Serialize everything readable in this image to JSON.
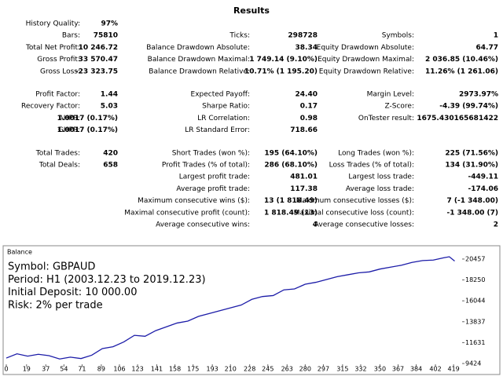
{
  "report": {
    "title": "Results",
    "groups": [
      [
        [
          {
            "label": "History Quality:",
            "value": "97%"
          },
          null,
          null
        ],
        [
          {
            "label": "Bars:",
            "value": "75810"
          },
          {
            "label": "Ticks:",
            "value": "298728"
          },
          {
            "label": "Symbols:",
            "value": "1"
          }
        ],
        [
          {
            "label": "Total Net Profit:",
            "value": "10 246.72"
          },
          {
            "label": "Balance Drawdown Absolute:",
            "value": "38.34"
          },
          {
            "label": "Equity Drawdown Absolute:",
            "value": "64.77"
          }
        ],
        [
          {
            "label": "Gross Profit:",
            "value": "33 570.47"
          },
          {
            "label": "Balance Drawdown Maximal:",
            "value": "1 749.14 (9.10%)"
          },
          {
            "label": "Equity Drawdown Maximal:",
            "value": "2 036.85 (10.46%)"
          }
        ],
        [
          {
            "label": "Gross Loss:",
            "value": "-23 323.75"
          },
          {
            "label": "Balance Drawdown Relative:",
            "value": "10.71% (1 195.20)"
          },
          {
            "label": "Equity Drawdown Relative:",
            "value": "11.26% (1 261.06)"
          }
        ]
      ],
      [
        [
          {
            "label": "Profit Factor:",
            "value": "1.44"
          },
          {
            "label": "Expected Payoff:",
            "value": "24.40"
          },
          {
            "label": "Margin Level:",
            "value": "2973.97%"
          }
        ],
        [
          {
            "label": "Recovery Factor:",
            "value": "5.03"
          },
          {
            "label": "Sharpe Ratio:",
            "value": "0.17"
          },
          {
            "label": "Z-Score:",
            "value": "-4.39 (99.74%)"
          }
        ],
        [
          {
            "label": "AHPR:",
            "value": "1.0017 (0.17%)"
          },
          {
            "label": "LR Correlation:",
            "value": "0.98"
          },
          {
            "label": "OnTester result:",
            "value": "1675.430165681422"
          }
        ],
        [
          {
            "label": "GHPR:",
            "value": "1.0017 (0.17%)"
          },
          {
            "label": "LR Standard Error:",
            "value": "718.66"
          },
          null
        ]
      ],
      [
        [
          {
            "label": "Total Trades:",
            "value": "420"
          },
          {
            "label": "Short Trades (won %):",
            "value": "195 (64.10%)"
          },
          {
            "label": "Long Trades (won %):",
            "value": "225 (71.56%)"
          }
        ],
        [
          {
            "label": "Total Deals:",
            "value": "658"
          },
          {
            "label": "Profit Trades (% of total):",
            "value": "286 (68.10%)"
          },
          {
            "label": "Loss Trades (% of total):",
            "value": "134 (31.90%)"
          }
        ],
        [
          null,
          {
            "label": "Largest profit trade:",
            "value": "481.01"
          },
          {
            "label": "Largest loss trade:",
            "value": "-449.11"
          }
        ],
        [
          null,
          {
            "label": "Average profit trade:",
            "value": "117.38"
          },
          {
            "label": "Average loss trade:",
            "value": "-174.06"
          }
        ],
        [
          null,
          {
            "label": "Maximum consecutive wins ($):",
            "value": "13 (1 818.49)"
          },
          {
            "label": "Maximum consecutive losses ($):",
            "value": "7 (-1 348.00)"
          }
        ],
        [
          null,
          {
            "label": "Maximal consecutive profit (count):",
            "value": "1 818.49 (13)"
          },
          {
            "label": "Maximal consecutive loss (count):",
            "value": "-1 348.00 (7)"
          }
        ],
        [
          null,
          {
            "label": "Average consecutive wins:",
            "value": "4"
          },
          {
            "label": "Average consecutive losses:",
            "value": "2"
          }
        ]
      ]
    ]
  },
  "chart_data": {
    "type": "line",
    "title": "Balance",
    "annotations": [
      "Symbol: GBPAUD",
      "Period: H1 (2003.12.23 to 2019.12.23)",
      "Initial Deposit: 10 000.00",
      "Risk: 2% per trade"
    ],
    "x": [
      0,
      10,
      20,
      30,
      40,
      50,
      60,
      70,
      80,
      90,
      100,
      110,
      120,
      130,
      140,
      150,
      160,
      170,
      180,
      190,
      200,
      210,
      220,
      230,
      240,
      250,
      260,
      270,
      280,
      290,
      300,
      310,
      320,
      330,
      340,
      350,
      360,
      370,
      380,
      390,
      400,
      410,
      415,
      420
    ],
    "series": [
      {
        "name": "Balance",
        "color": "#1c1ca8",
        "values": [
          10000,
          10450,
          10200,
          10400,
          10250,
          9900,
          10100,
          9950,
          10300,
          11000,
          11200,
          11700,
          12400,
          12300,
          12900,
          13300,
          13700,
          13900,
          14400,
          14700,
          15000,
          15300,
          15600,
          16200,
          16500,
          16600,
          17200,
          17300,
          17800,
          18000,
          18300,
          18600,
          18800,
          19000,
          19100,
          19400,
          19600,
          19800,
          20100,
          20300,
          20350,
          20600,
          20700,
          20246.72
        ]
      }
    ],
    "xlim": [
      0,
      427
    ],
    "ylim": [
      9424,
      20950
    ],
    "xticks": [
      0,
      19,
      37,
      54,
      71,
      89,
      106,
      123,
      141,
      158,
      175,
      193,
      210,
      228,
      245,
      263,
      280,
      297,
      315,
      332,
      350,
      367,
      384,
      402,
      419
    ],
    "yticks": [
      9424,
      11631,
      13837,
      16044,
      18250,
      20457
    ]
  }
}
